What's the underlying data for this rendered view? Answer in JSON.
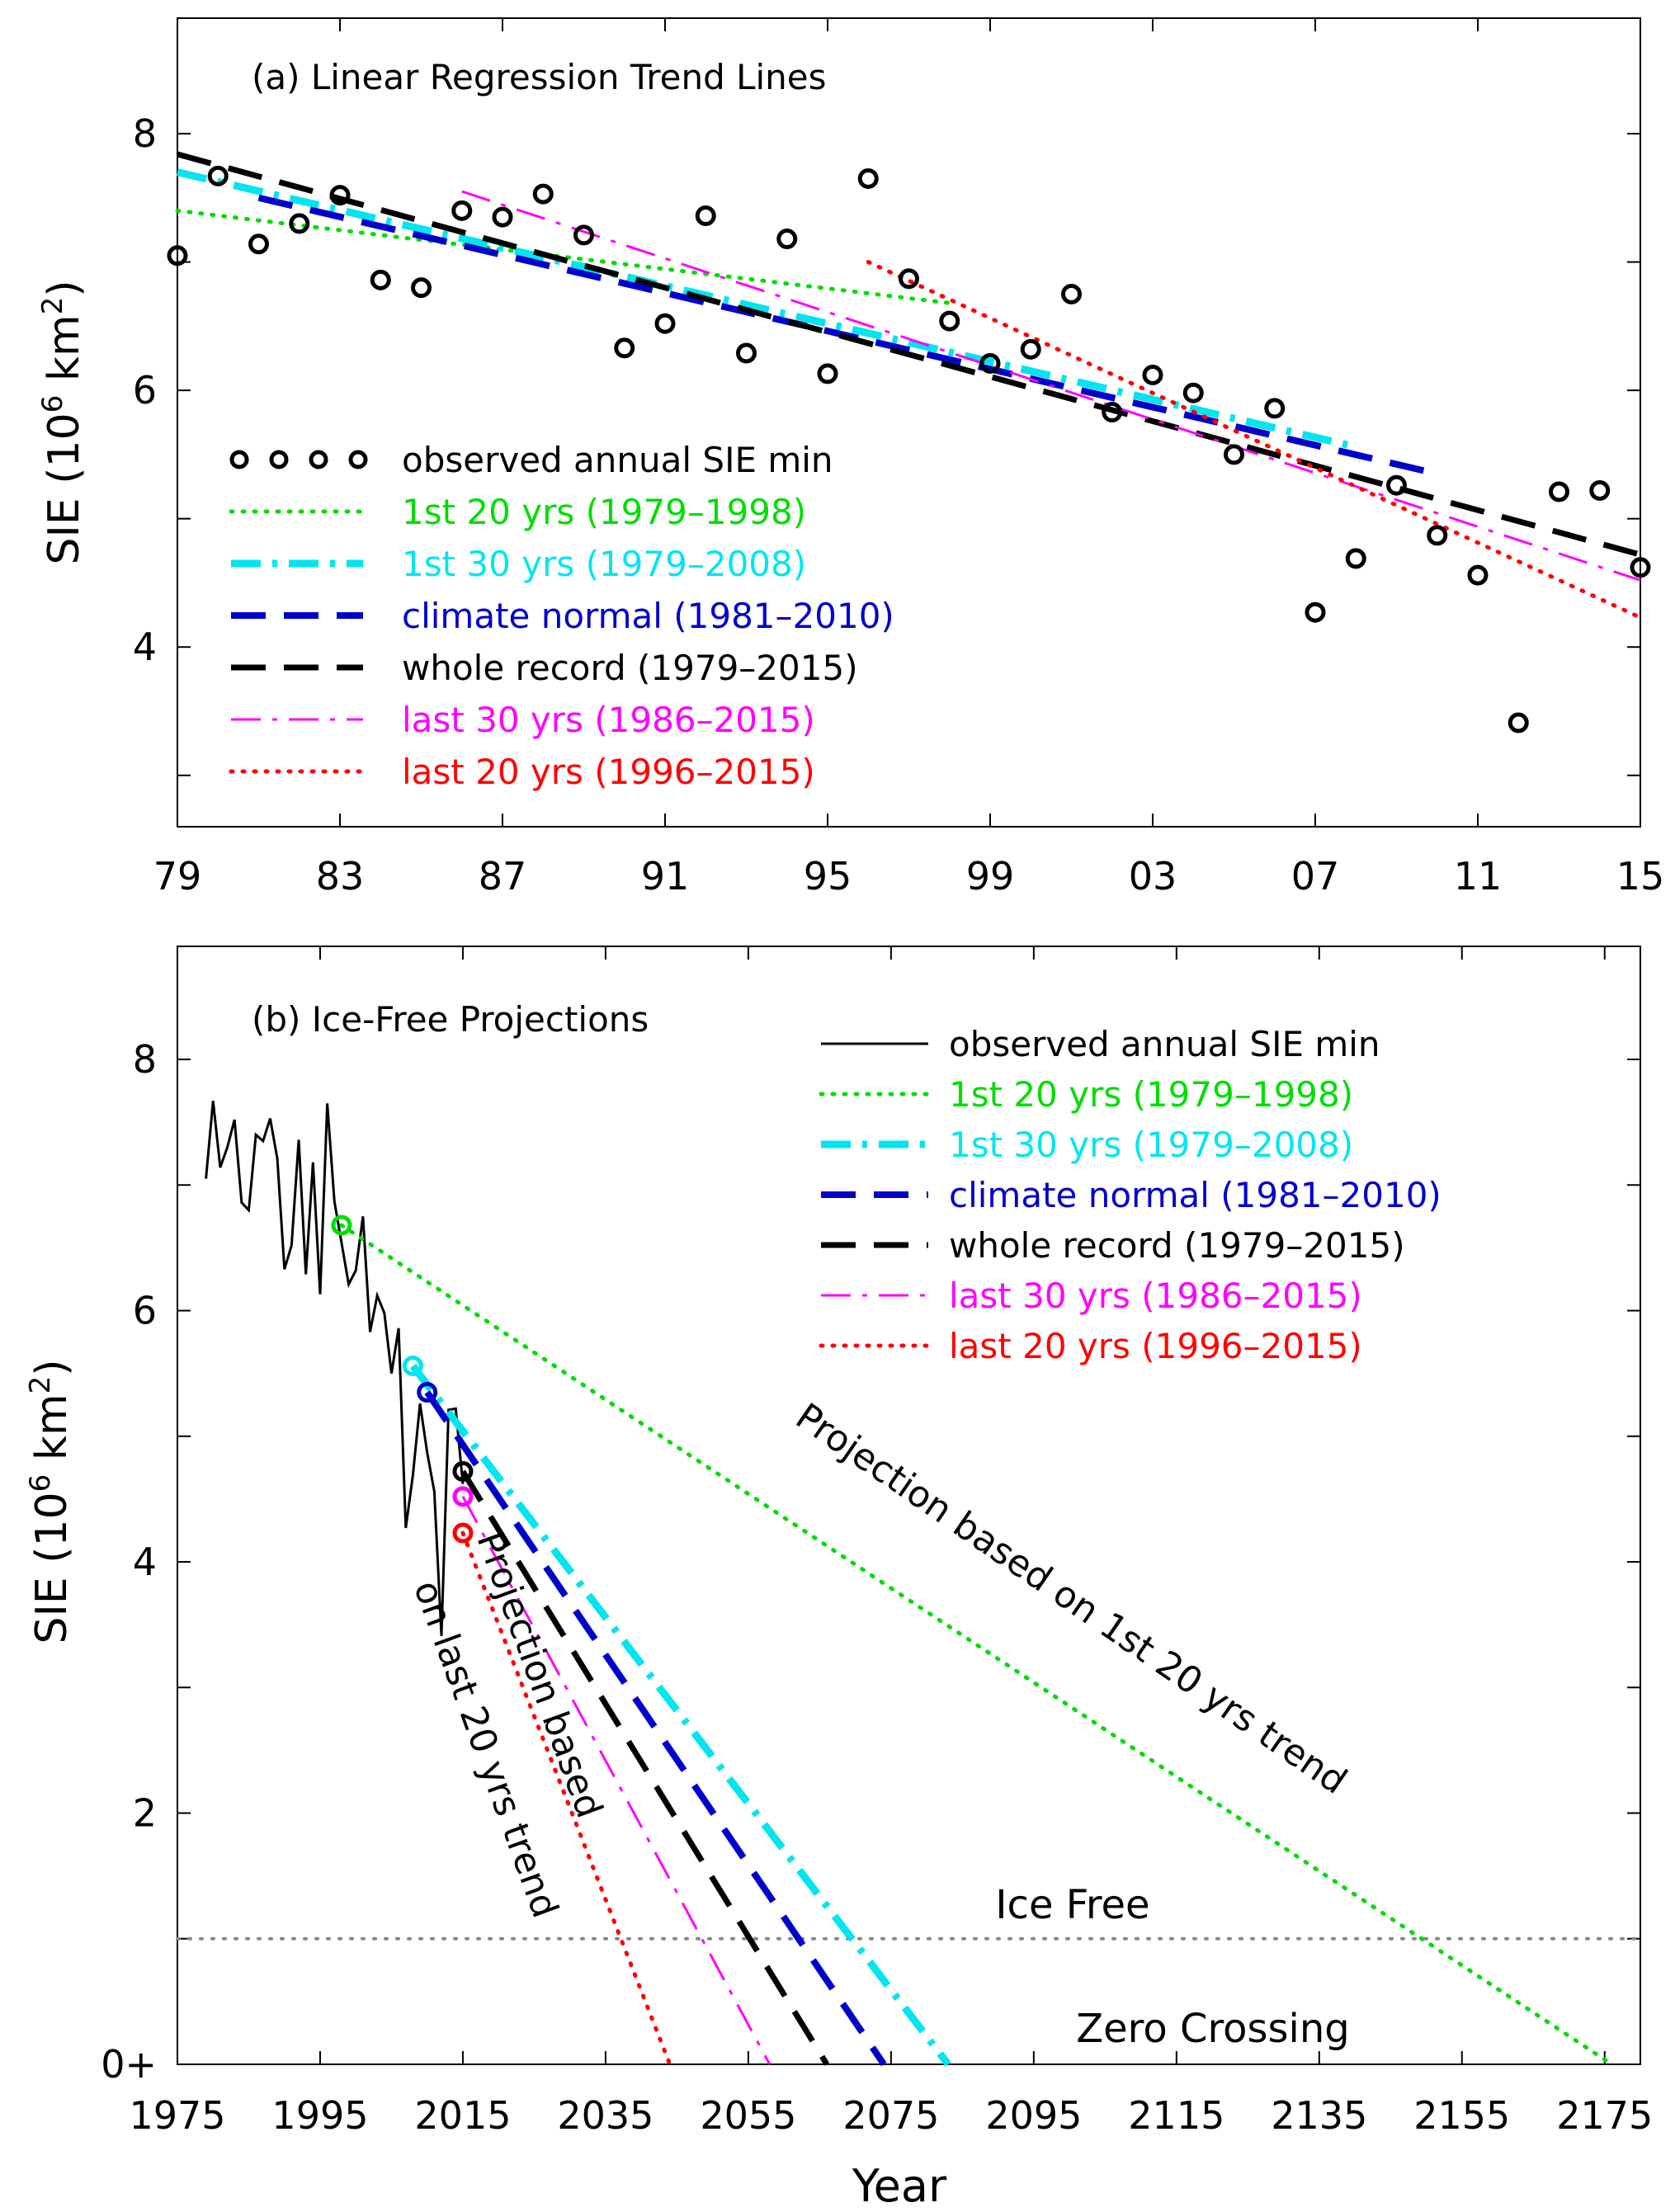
{
  "chart_data": [
    {
      "type": "scatter",
      "title": "(a) Linear Regression Trend Lines",
      "xlabel": "",
      "ylabel": "SIE (10^6 km^2)",
      "xlim": [
        1979,
        2015
      ],
      "ylim": [
        2.6,
        8.9
      ],
      "x_ticks": [
        1979,
        1983,
        1987,
        1991,
        1995,
        1999,
        2003,
        2007,
        2011,
        2015
      ],
      "x_tick_labels": [
        "79",
        "83",
        "87",
        "91",
        "95",
        "99",
        "03",
        "07",
        "11",
        "15"
      ],
      "y_ticks": [
        4,
        6,
        8
      ],
      "y_tick_labels": [
        "4",
        "6",
        "8"
      ],
      "legend_position": "bottom-left",
      "observed": {
        "name": "observed annual SIE min",
        "x": [
          1979,
          1980,
          1981,
          1982,
          1983,
          1984,
          1985,
          1986,
          1987,
          1988,
          1989,
          1990,
          1991,
          1992,
          1993,
          1994,
          1995,
          1996,
          1997,
          1998,
          1999,
          2000,
          2001,
          2002,
          2003,
          2004,
          2005,
          2006,
          2007,
          2008,
          2009,
          2010,
          2011,
          2012,
          2013,
          2014,
          2015
        ],
        "values": [
          7.05,
          7.67,
          7.14,
          7.3,
          7.52,
          6.86,
          6.8,
          7.4,
          7.35,
          7.53,
          7.21,
          6.33,
          6.52,
          7.36,
          6.29,
          7.18,
          6.13,
          7.65,
          6.87,
          6.54,
          6.21,
          6.32,
          6.75,
          5.83,
          6.12,
          5.98,
          5.5,
          5.86,
          4.27,
          4.69,
          5.26,
          4.87,
          4.56,
          3.41,
          5.21,
          5.22,
          4.62
        ]
      },
      "series": [
        {
          "name": "1st 20 yrs (1979–1998)",
          "color": "#00dd00",
          "dash": "dot",
          "x": [
            1979,
            1998
          ],
          "values": [
            7.4,
            6.68
          ]
        },
        {
          "name": "1st 30 yrs (1979–2008)",
          "color": "#00e5ee",
          "dash": "dashdot",
          "x": [
            1979,
            2008
          ],
          "values": [
            7.7,
            5.56
          ]
        },
        {
          "name": "climate normal (1981–2010)",
          "color": "#0000cc",
          "dash": "dash",
          "x": [
            1981,
            2010
          ],
          "values": [
            7.5,
            5.35
          ]
        },
        {
          "name": "whole record (1979–2015)",
          "color": "#000000",
          "dash": "dash",
          "x": [
            1979,
            2015
          ],
          "values": [
            7.84,
            4.72
          ]
        },
        {
          "name": "last 30 yrs (1986–2015)",
          "color": "#ff00ff",
          "dash": "dashdot",
          "x": [
            1986,
            2015
          ],
          "values": [
            7.55,
            4.52
          ]
        },
        {
          "name": "last 20 yrs (1996–2015)",
          "color": "#ff0000",
          "dash": "dot",
          "x": [
            1996,
            2015
          ],
          "values": [
            7.0,
            4.23
          ]
        }
      ]
    },
    {
      "type": "line",
      "title": "(b) Ice-Free Projections",
      "xlabel": "Year",
      "ylabel": "SIE (10^6 km^2)",
      "xlim": [
        1975,
        2180
      ],
      "ylim": [
        0,
        8.9
      ],
      "x_ticks": [
        1975,
        1995,
        2015,
        2035,
        2055,
        2075,
        2095,
        2115,
        2135,
        2155,
        2175
      ],
      "x_tick_labels": [
        "1975",
        "1995",
        "2015",
        "2035",
        "2055",
        "2075",
        "2095",
        "2115",
        "2135",
        "2155",
        "2175"
      ],
      "y_ticks": [
        0,
        2,
        4,
        6,
        8
      ],
      "y_tick_labels": [
        "0+",
        "2",
        "4",
        "6",
        "8"
      ],
      "legend_position": "top-right",
      "ice_free_threshold": 1,
      "annotations": {
        "ice_free": "Ice Free",
        "zero_crossing": "Zero Crossing",
        "proj_first20": "Projection based on 1st 20 yrs trend",
        "proj_last20_line1": "Projection based",
        "proj_last20_line2": "on last 20 yrs trend"
      },
      "observed": {
        "name": "observed annual SIE min",
        "color": "#000000",
        "x": [
          1979,
          1980,
          1981,
          1982,
          1983,
          1984,
          1985,
          1986,
          1987,
          1988,
          1989,
          1990,
          1991,
          1992,
          1993,
          1994,
          1995,
          1996,
          1997,
          1998,
          1999,
          2000,
          2001,
          2002,
          2003,
          2004,
          2005,
          2006,
          2007,
          2008,
          2009,
          2010,
          2011,
          2012,
          2013,
          2014,
          2015
        ],
        "values": [
          7.05,
          7.67,
          7.14,
          7.3,
          7.52,
          6.86,
          6.8,
          7.4,
          7.35,
          7.53,
          7.21,
          6.33,
          6.52,
          7.36,
          6.29,
          7.18,
          6.13,
          7.65,
          6.87,
          6.54,
          6.21,
          6.32,
          6.75,
          5.83,
          6.12,
          5.98,
          5.5,
          5.86,
          4.27,
          4.69,
          5.26,
          4.87,
          4.56,
          3.41,
          5.21,
          5.22,
          4.62
        ]
      },
      "series": [
        {
          "name": "1st 20 yrs (1979–1998)",
          "color": "#00dd00",
          "dash": "dot",
          "start": [
            1998,
            6.68
          ],
          "x": [
            1998,
            2176
          ],
          "values": [
            6.68,
            0
          ]
        },
        {
          "name": "1st 30 yrs (1979–2008)",
          "color": "#00e5ee",
          "dash": "dashdot",
          "start": [
            2008,
            5.56
          ],
          "x": [
            2008,
            2083
          ],
          "values": [
            5.56,
            0
          ]
        },
        {
          "name": "climate normal (1981–2010)",
          "color": "#0000cc",
          "dash": "dash",
          "start": [
            2010,
            5.35
          ],
          "x": [
            2010,
            2074
          ],
          "values": [
            5.35,
            0
          ]
        },
        {
          "name": "whole record (1979–2015)",
          "color": "#000000",
          "dash": "dash",
          "start": [
            2015,
            4.72
          ],
          "x": [
            2015,
            2066
          ],
          "values": [
            4.72,
            0
          ]
        },
        {
          "name": "last 30 yrs (1986–2015)",
          "color": "#ff00ff",
          "dash": "dashdot",
          "start": [
            2015,
            4.52
          ],
          "x": [
            2015,
            2058
          ],
          "values": [
            4.52,
            0
          ]
        },
        {
          "name": "last 20 yrs (1996–2015)",
          "color": "#ff0000",
          "dash": "dot",
          "start": [
            2015,
            4.23
          ],
          "x": [
            2015,
            2044
          ],
          "values": [
            4.23,
            0
          ]
        }
      ]
    }
  ]
}
